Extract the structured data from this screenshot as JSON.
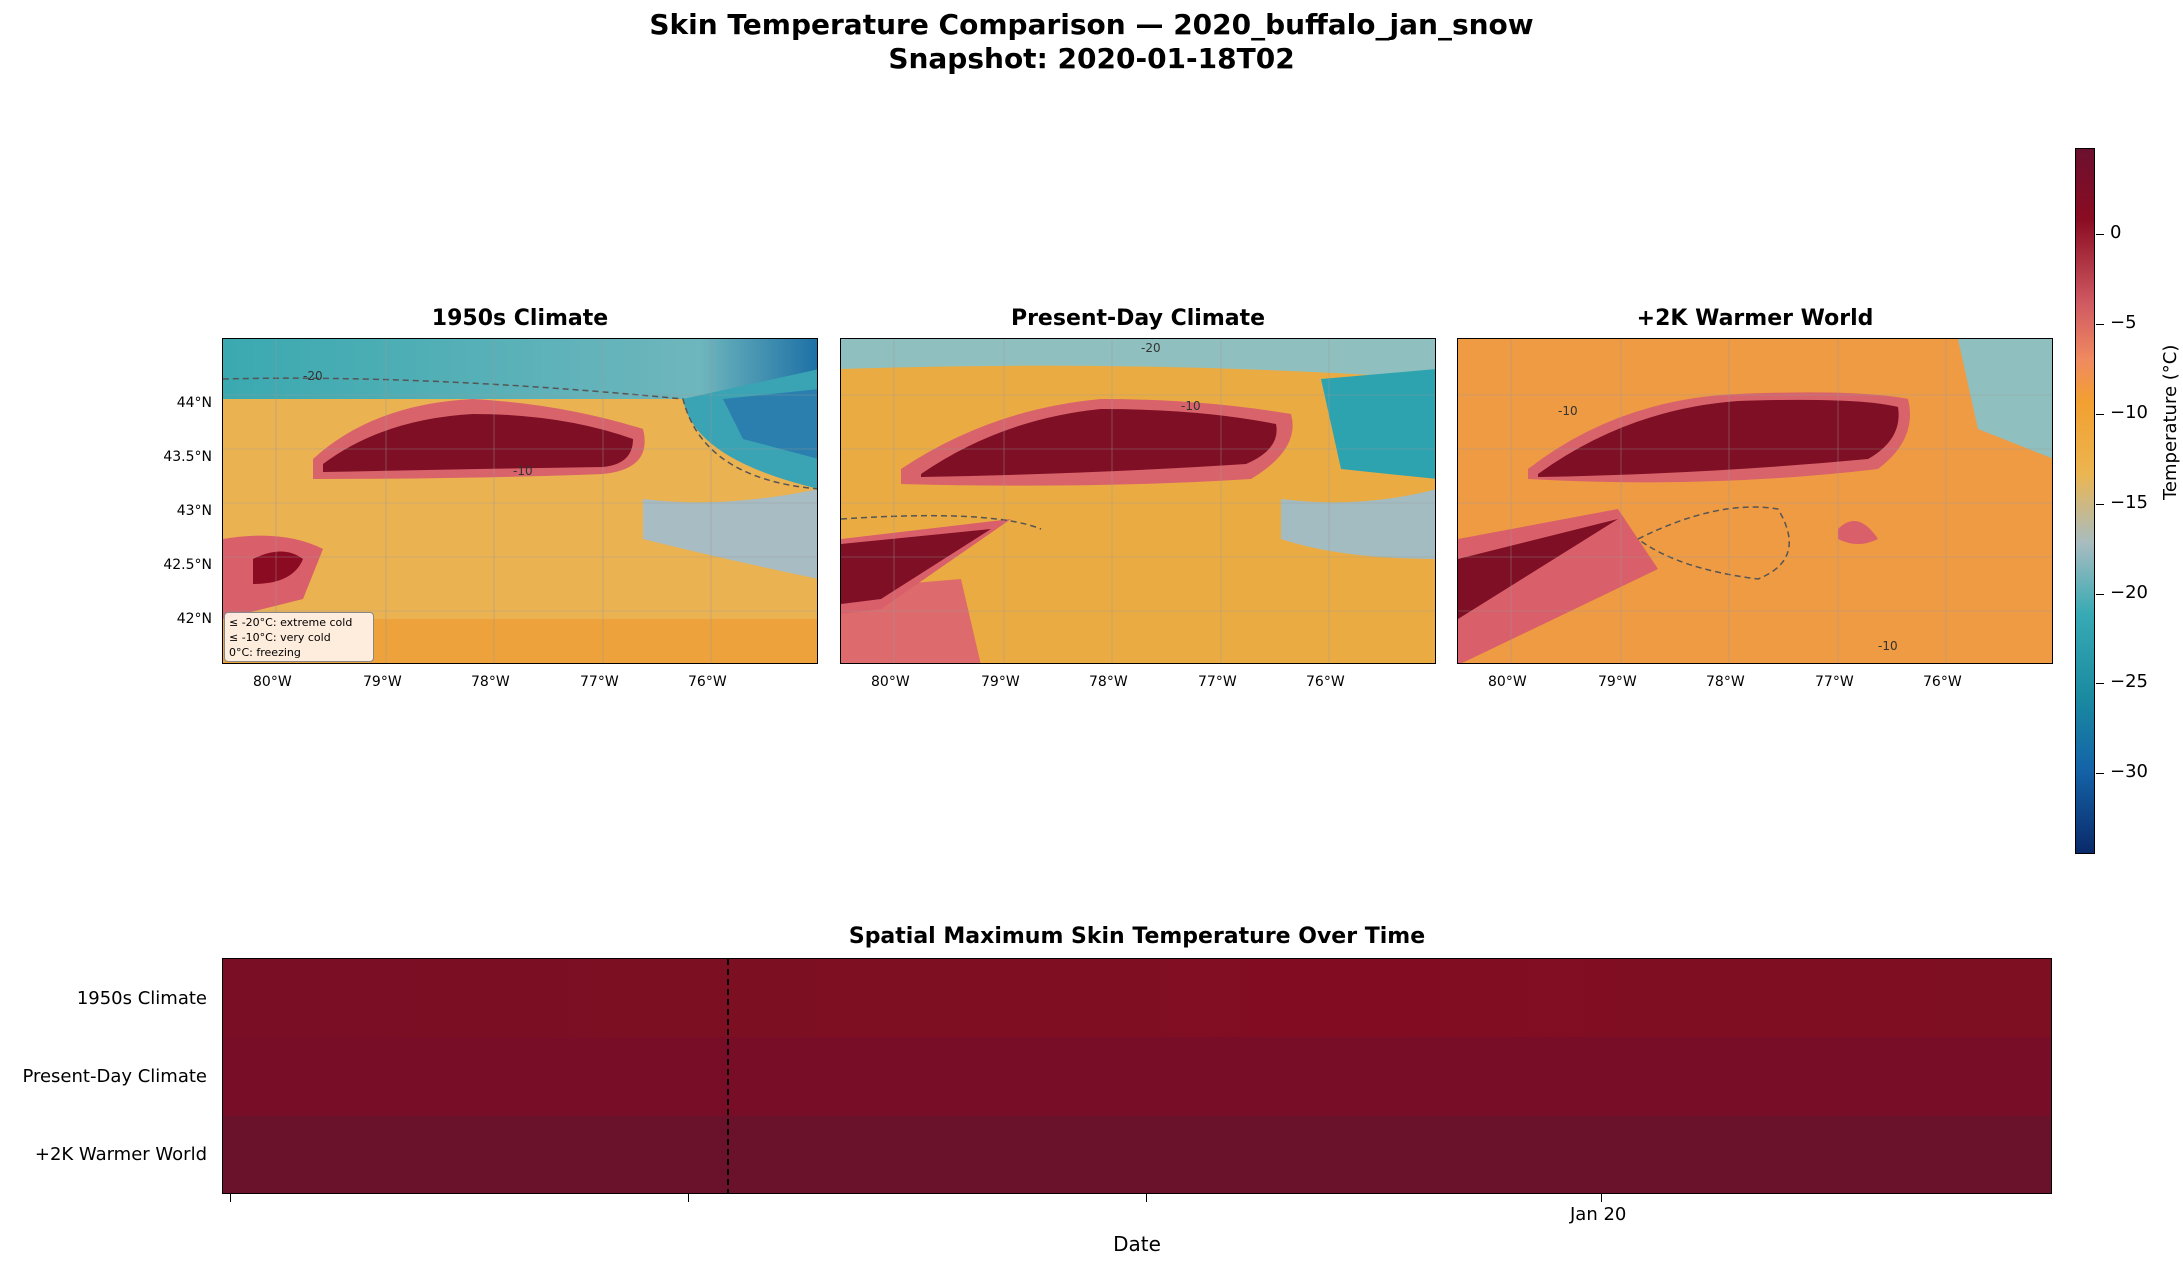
{
  "title_line1": "Skin Temperature Comparison — 2020_buffalo_jan_snow",
  "title_line2": "Snapshot: 2020-01-18T02",
  "chart_data": {
    "type": "heatmap",
    "panels": [
      {
        "title": "1950s Climate"
      },
      {
        "title": "Present-Day Climate"
      },
      {
        "title": "+2K Warmer World"
      }
    ],
    "lon_ticks": [
      "80°W",
      "79°W",
      "78°W",
      "77°W",
      "76°W"
    ],
    "lat_ticks": [
      "44°N",
      "43.5°N",
      "43°N",
      "42.5°N",
      "42°N"
    ],
    "contour_labels": [
      "-20",
      "-10"
    ],
    "legend": [
      "≤ -20°C: extreme cold",
      "≤ -10°C: very cold",
      "0°C: freezing"
    ],
    "colorbar": {
      "label": "Temperature (°C)",
      "ticks": [
        "0",
        "−5",
        "−10",
        "−15",
        "−20",
        "−25",
        "−30"
      ],
      "range": [
        -34.5,
        4.8
      ]
    },
    "timeseries": {
      "title": "Spatial Maximum Skin Temperature Over Time",
      "rows": [
        "1950s Climate",
        "Present-Day Climate",
        "+2K Warmer World"
      ],
      "xlabel": "Date",
      "x_tick": "Jan 20",
      "snapshot": "2020-01-18T02"
    },
    "colors": {
      "warm": "#7d0f22",
      "cold": "#1f9aa8",
      "mid": "#eaa33a"
    }
  }
}
